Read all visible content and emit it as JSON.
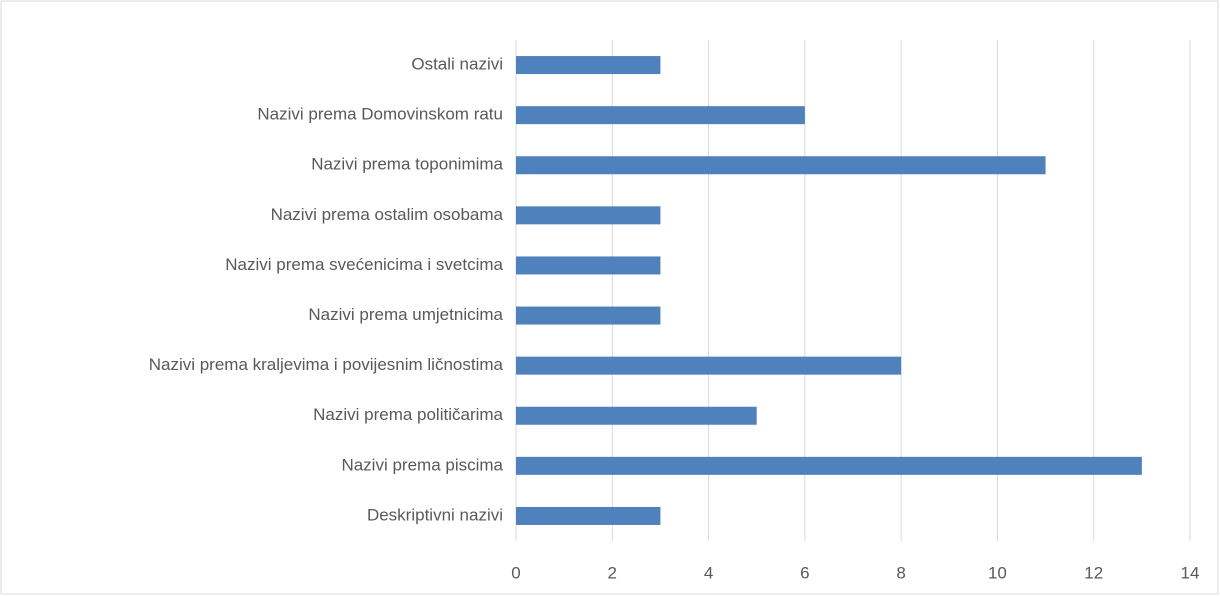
{
  "chart_data": {
    "type": "bar",
    "orientation": "horizontal",
    "categories": [
      "Ostali nazivi",
      "Nazivi prema Domovinskom ratu",
      "Nazivi prema toponimima",
      "Nazivi prema ostalim osobama",
      "Nazivi prema svećenicima i svetcima",
      "Nazivi prema umjetnicima",
      "Nazivi prema kraljevima i povijesnim ličnostima",
      "Nazivi prema političarima",
      "Nazivi prema piscima",
      "Deskriptivni nazivi"
    ],
    "values": [
      3,
      6,
      11,
      3,
      3,
      3,
      8,
      5,
      13,
      3
    ],
    "color": "#4f81bd",
    "xlim": [
      0,
      14
    ],
    "xticks": [
      0,
      2,
      4,
      6,
      8,
      10,
      12,
      14
    ],
    "grid": true
  }
}
